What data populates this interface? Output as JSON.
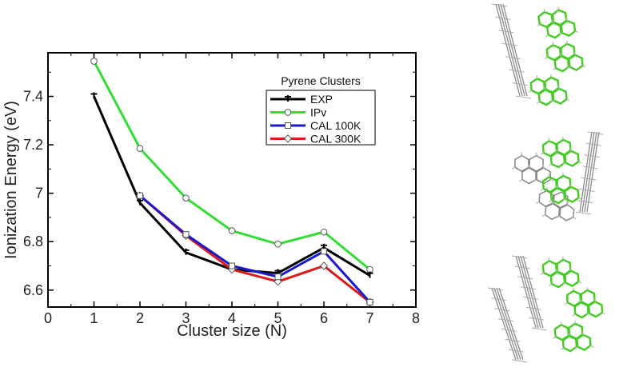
{
  "chart_data": {
    "type": "line",
    "xlabel": "Cluster size (N)",
    "ylabel": "Ionization Energy (eV)",
    "xlim": [
      0,
      8
    ],
    "ylim": [
      6.53,
      7.58
    ],
    "xticks": [
      0,
      1,
      2,
      3,
      4,
      5,
      6,
      7,
      8
    ],
    "xtick_labels": [
      "0",
      "1",
      "2",
      "3",
      "4",
      "5",
      "6",
      "7",
      "8"
    ],
    "yticks": [
      6.6,
      6.8,
      7.0,
      7.2,
      7.4
    ],
    "ytick_labels": [
      "6.6",
      "6.8",
      "7",
      "7.2",
      "7.4"
    ],
    "grid": false,
    "legend": {
      "title": "Pyrene Clusters",
      "placement": "top-right"
    },
    "series": [
      {
        "name": "EXP",
        "color": "#000000",
        "marker": "bar",
        "x": [
          1,
          2,
          3,
          4,
          5,
          6,
          7
        ],
        "y": [
          7.4,
          6.96,
          6.755,
          6.685,
          6.67,
          6.775,
          6.66
        ]
      },
      {
        "name": "IPv",
        "color": "#33dd33",
        "marker": "circle",
        "x": [
          1,
          2,
          3,
          4,
          5,
          6,
          7
        ],
        "y": [
          7.545,
          7.185,
          6.98,
          6.845,
          6.79,
          6.84,
          6.685
        ]
      },
      {
        "name": "CAL 100K",
        "color": "#1a1acc",
        "marker": "square",
        "x": [
          2,
          3,
          4,
          5,
          6,
          7
        ],
        "y": [
          6.99,
          6.83,
          6.7,
          6.655,
          6.76,
          6.55
        ]
      },
      {
        "name": "CAL 300K",
        "color": "#dd1a1a",
        "marker": "diamond",
        "x": [
          2,
          3,
          4,
          5,
          6,
          7
        ],
        "y": [
          6.99,
          6.825,
          6.685,
          6.635,
          6.7,
          6.55
        ]
      }
    ]
  },
  "molecules": {
    "structures": [
      "cluster-structure-n5",
      "cluster-structure-n6",
      "cluster-structure-n7"
    ],
    "colors": {
      "highlight": "#44cc22",
      "neutral": "#8a8a8a"
    }
  }
}
